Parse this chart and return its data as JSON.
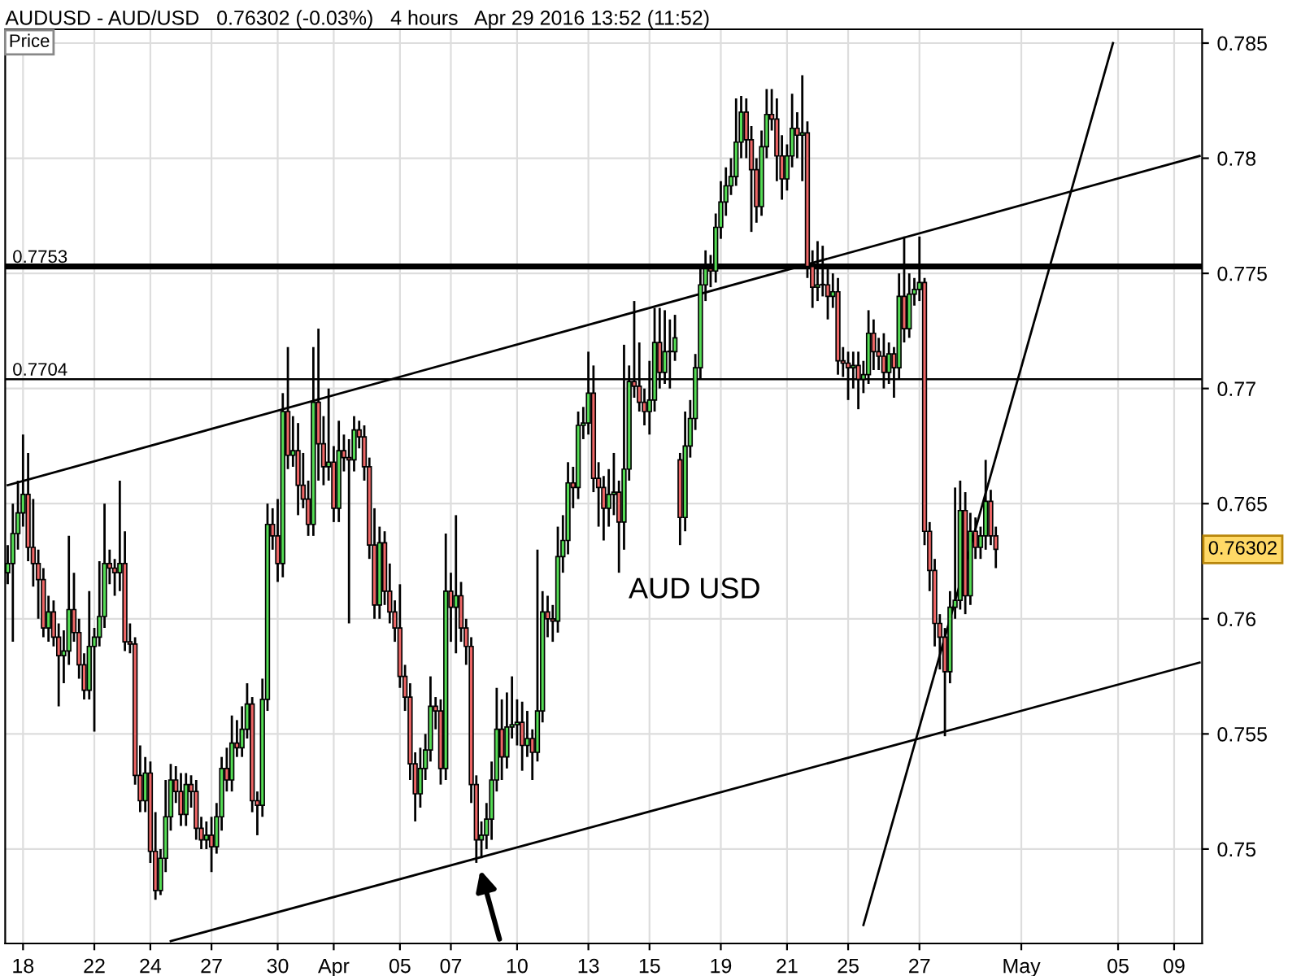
{
  "chart_data": {
    "type": "candlestick",
    "title": "AUDUSD - AUD/USD   0.76302 (-0.03%)   4 hours   Apr 29 2016 13:52 (11:52)",
    "ylabel": "Price",
    "categories": [
      null,
      null,
      null,
      "18",
      null,
      null,
      null,
      null,
      null,
      null,
      null,
      null,
      null,
      null,
      null,
      null,
      null,
      "22",
      null,
      null,
      null,
      null,
      null,
      null,
      null,
      null,
      null,
      null,
      "24",
      null,
      null,
      null,
      null,
      null,
      null,
      null,
      null,
      null,
      null,
      null,
      "27",
      null,
      null,
      null,
      null,
      null,
      null,
      null,
      null,
      null,
      null,
      null,
      null,
      "30",
      null,
      null,
      null,
      null,
      null,
      null,
      null,
      null,
      null,
      null,
      "Apr",
      null,
      null,
      null,
      null,
      null,
      null,
      null,
      null,
      null,
      null,
      null,
      null,
      "05",
      null,
      null,
      null,
      null,
      null,
      null,
      null,
      null,
      null,
      "07",
      null,
      null,
      null,
      null,
      null,
      null,
      null,
      null,
      null,
      null,
      null,
      null,
      "10",
      null,
      null,
      null,
      null,
      null,
      null,
      null,
      null,
      null,
      null,
      null,
      null,
      null,
      "13",
      null,
      null,
      null,
      null,
      null,
      null,
      null,
      null,
      null,
      null,
      null,
      "15",
      null,
      null,
      null,
      null,
      null,
      null,
      null,
      null,
      null,
      null,
      null,
      null,
      null,
      "19",
      null,
      null,
      null,
      null,
      null,
      null,
      null,
      null,
      null,
      null,
      null,
      null,
      "21",
      null,
      null,
      null,
      null,
      null,
      null,
      null,
      null,
      null,
      null,
      null,
      "25",
      null,
      null,
      null,
      null,
      null,
      null,
      null,
      null,
      null,
      null,
      null,
      null,
      null,
      "27",
      null,
      null,
      null,
      null,
      null,
      null,
      null,
      null,
      null,
      null,
      null,
      null,
      null,
      null,
      null,
      null,
      null,
      null,
      null,
      "May",
      null,
      null,
      null,
      null,
      null,
      null,
      null,
      null,
      null,
      null,
      null,
      null,
      null,
      null,
      null,
      null,
      null,
      null,
      "05",
      null,
      null,
      null,
      null,
      null,
      null,
      null,
      null,
      null,
      null,
      "09",
      null,
      null,
      null,
      null,
      null
    ],
    "ohlc": [
      [
        0.762,
        0.7632,
        0.7615,
        0.7624
      ],
      [
        0.7624,
        0.765,
        0.759,
        0.7637
      ],
      [
        0.7637,
        0.766,
        0.763,
        0.7646
      ],
      [
        0.7646,
        0.768,
        0.764,
        0.7654
      ],
      [
        0.7654,
        0.7672,
        0.7625,
        0.7631
      ],
      [
        0.7631,
        0.7652,
        0.7614,
        0.7624
      ],
      [
        0.7624,
        0.763,
        0.76,
        0.7617
      ],
      [
        0.7617,
        0.7622,
        0.7592,
        0.7596
      ],
      [
        0.7596,
        0.761,
        0.759,
        0.7603
      ],
      [
        0.7603,
        0.7608,
        0.7588,
        0.7592
      ],
      [
        0.7592,
        0.7598,
        0.7562,
        0.7584
      ],
      [
        0.7584,
        0.7595,
        0.7572,
        0.7586
      ],
      [
        0.7586,
        0.7636,
        0.758,
        0.7604
      ],
      [
        0.7604,
        0.762,
        0.759,
        0.7594
      ],
      [
        0.7594,
        0.76,
        0.7574,
        0.758
      ],
      [
        0.758,
        0.7585,
        0.7565,
        0.7569
      ],
      [
        0.7569,
        0.7612,
        0.7565,
        0.7588
      ],
      [
        0.7588,
        0.7596,
        0.7551,
        0.7592
      ],
      [
        0.7592,
        0.7625,
        0.7588,
        0.7601
      ],
      [
        0.7601,
        0.765,
        0.7596,
        0.7624
      ],
      [
        0.7624,
        0.763,
        0.7615,
        0.7622
      ],
      [
        0.7622,
        0.7626,
        0.761,
        0.762
      ],
      [
        0.762,
        0.766,
        0.7612,
        0.7624
      ],
      [
        0.7624,
        0.7638,
        0.7586,
        0.759
      ],
      [
        0.759,
        0.7598,
        0.7585,
        0.7589
      ],
      [
        0.7589,
        0.7592,
        0.7528,
        0.7532
      ],
      [
        0.7532,
        0.7545,
        0.7516,
        0.7521
      ],
      [
        0.7521,
        0.754,
        0.7516,
        0.7533
      ],
      [
        0.7533,
        0.7538,
        0.7494,
        0.7499
      ],
      [
        0.7499,
        0.7516,
        0.7478,
        0.7482
      ],
      [
        0.7482,
        0.75,
        0.748,
        0.7496
      ],
      [
        0.7496,
        0.753,
        0.749,
        0.7514
      ],
      [
        0.7514,
        0.7537,
        0.7508,
        0.753
      ],
      [
        0.753,
        0.7536,
        0.752,
        0.7525
      ],
      [
        0.7525,
        0.7533,
        0.751,
        0.7515
      ],
      [
        0.7515,
        0.7533,
        0.751,
        0.7528
      ],
      [
        0.7528,
        0.7532,
        0.7518,
        0.7525
      ],
      [
        0.7525,
        0.753,
        0.7504,
        0.7509
      ],
      [
        0.7509,
        0.7514,
        0.75,
        0.7504
      ],
      [
        0.7504,
        0.7512,
        0.75,
        0.7506
      ],
      [
        0.7506,
        0.7514,
        0.749,
        0.7501
      ],
      [
        0.7501,
        0.752,
        0.7498,
        0.7514
      ],
      [
        0.7514,
        0.754,
        0.7508,
        0.7535
      ],
      [
        0.7535,
        0.7544,
        0.7525,
        0.753
      ],
      [
        0.753,
        0.7558,
        0.7525,
        0.7546
      ],
      [
        0.7546,
        0.7556,
        0.754,
        0.7544
      ],
      [
        0.7544,
        0.7562,
        0.754,
        0.7552
      ],
      [
        0.7552,
        0.7572,
        0.7548,
        0.7563
      ],
      [
        0.7563,
        0.7566,
        0.7516,
        0.7521
      ],
      [
        0.7521,
        0.7525,
        0.7506,
        0.7519
      ],
      [
        0.7519,
        0.7574,
        0.7514,
        0.7565
      ],
      [
        0.7565,
        0.765,
        0.756,
        0.7641
      ],
      [
        0.7641,
        0.7648,
        0.763,
        0.7636
      ],
      [
        0.7636,
        0.7652,
        0.7616,
        0.7624
      ],
      [
        0.7624,
        0.7698,
        0.7618,
        0.769
      ],
      [
        0.769,
        0.7718,
        0.7665,
        0.7671
      ],
      [
        0.7671,
        0.7688,
        0.7666,
        0.7673
      ],
      [
        0.7673,
        0.7685,
        0.7645,
        0.7658
      ],
      [
        0.7658,
        0.7672,
        0.7648,
        0.7652
      ],
      [
        0.7652,
        0.766,
        0.7636,
        0.7641
      ],
      [
        0.7641,
        0.7718,
        0.7636,
        0.7694
      ],
      [
        0.7694,
        0.7726,
        0.766,
        0.7676
      ],
      [
        0.7676,
        0.7688,
        0.7658,
        0.7666
      ],
      [
        0.7666,
        0.77,
        0.766,
        0.7668
      ],
      [
        0.7668,
        0.7675,
        0.7642,
        0.7648
      ],
      [
        0.7648,
        0.7686,
        0.7642,
        0.7673
      ],
      [
        0.7673,
        0.768,
        0.7664,
        0.767
      ],
      [
        0.767,
        0.7678,
        0.7598,
        0.7669
      ],
      [
        0.7669,
        0.7688,
        0.7664,
        0.7682
      ],
      [
        0.7682,
        0.7686,
        0.7674,
        0.7679
      ],
      [
        0.7679,
        0.7684,
        0.766,
        0.7666
      ],
      [
        0.7666,
        0.767,
        0.7626,
        0.7632
      ],
      [
        0.7632,
        0.7648,
        0.76,
        0.7606
      ],
      [
        0.7606,
        0.764,
        0.76,
        0.7633
      ],
      [
        0.7633,
        0.7638,
        0.7606,
        0.7612
      ],
      [
        0.7612,
        0.7624,
        0.7598,
        0.7603
      ],
      [
        0.7603,
        0.7608,
        0.759,
        0.7596
      ],
      [
        0.7596,
        0.7615,
        0.757,
        0.7575
      ],
      [
        0.7575,
        0.758,
        0.756,
        0.7566
      ],
      [
        0.7566,
        0.7572,
        0.753,
        0.7537
      ],
      [
        0.7537,
        0.7542,
        0.7512,
        0.7524
      ],
      [
        0.7524,
        0.7544,
        0.7518,
        0.7535
      ],
      [
        0.7535,
        0.755,
        0.753,
        0.7543
      ],
      [
        0.7543,
        0.7575,
        0.7538,
        0.7562
      ],
      [
        0.7562,
        0.7566,
        0.7552,
        0.756
      ],
      [
        0.756,
        0.7565,
        0.7528,
        0.7535
      ],
      [
        0.7535,
        0.7637,
        0.753,
        0.7612
      ],
      [
        0.7612,
        0.762,
        0.759,
        0.7605
      ],
      [
        0.7605,
        0.7645,
        0.7585,
        0.761
      ],
      [
        0.761,
        0.7616,
        0.759,
        0.7596
      ],
      [
        0.7596,
        0.76,
        0.758,
        0.7588
      ],
      [
        0.7588,
        0.7592,
        0.752,
        0.7528
      ],
      [
        0.7528,
        0.7532,
        0.7494,
        0.7504
      ],
      [
        0.7504,
        0.7512,
        0.7496,
        0.7506
      ],
      [
        0.7506,
        0.752,
        0.75,
        0.7513
      ],
      [
        0.7513,
        0.7538,
        0.7504,
        0.753
      ],
      [
        0.753,
        0.757,
        0.7525,
        0.7552
      ],
      [
        0.7552,
        0.7565,
        0.753,
        0.754
      ],
      [
        0.754,
        0.7568,
        0.7535,
        0.7553
      ],
      [
        0.7553,
        0.7575,
        0.7548,
        0.7554
      ],
      [
        0.7554,
        0.7565,
        0.7545,
        0.7555
      ],
      [
        0.7555,
        0.7564,
        0.7534,
        0.7545
      ],
      [
        0.7545,
        0.756,
        0.754,
        0.7548
      ],
      [
        0.7548,
        0.7552,
        0.753,
        0.7542
      ],
      [
        0.7542,
        0.763,
        0.7538,
        0.756
      ],
      [
        0.756,
        0.7612,
        0.7555,
        0.7603
      ],
      [
        0.7603,
        0.761,
        0.7592,
        0.76
      ],
      [
        0.76,
        0.7606,
        0.759,
        0.7599
      ],
      [
        0.7599,
        0.764,
        0.7594,
        0.7627
      ],
      [
        0.7627,
        0.7645,
        0.762,
        0.7634
      ],
      [
        0.7634,
        0.7668,
        0.7628,
        0.7659
      ],
      [
        0.7659,
        0.7666,
        0.7648,
        0.7657
      ],
      [
        0.7657,
        0.769,
        0.7652,
        0.7684
      ],
      [
        0.7684,
        0.7692,
        0.7678,
        0.7685
      ],
      [
        0.7685,
        0.7716,
        0.768,
        0.7698
      ],
      [
        0.7698,
        0.771,
        0.7655,
        0.7661
      ],
      [
        0.7661,
        0.7668,
        0.764,
        0.7657
      ],
      [
        0.7657,
        0.7662,
        0.7634,
        0.7648
      ],
      [
        0.7648,
        0.7665,
        0.764,
        0.7654
      ],
      [
        0.7654,
        0.7672,
        0.7645,
        0.7655
      ],
      [
        0.7655,
        0.766,
        0.762,
        0.7642
      ],
      [
        0.7642,
        0.7719,
        0.763,
        0.7665
      ],
      [
        0.7665,
        0.771,
        0.766,
        0.7703
      ],
      [
        0.7703,
        0.7738,
        0.7696,
        0.7701
      ],
      [
        0.7701,
        0.772,
        0.769,
        0.7694
      ],
      [
        0.7694,
        0.77,
        0.7684,
        0.769
      ],
      [
        0.769,
        0.7712,
        0.768,
        0.7695
      ],
      [
        0.7695,
        0.7735,
        0.769,
        0.772
      ],
      [
        0.772,
        0.7735,
        0.77,
        0.7707
      ],
      [
        0.7707,
        0.7734,
        0.7702,
        0.7716
      ],
      [
        0.7716,
        0.773,
        0.77,
        0.7716
      ],
      [
        0.7716,
        0.7732,
        0.7712,
        0.7722
      ],
      [
        0.7669,
        0.7672,
        0.7632,
        0.7644
      ],
      [
        0.7644,
        0.769,
        0.7638,
        0.7675
      ],
      [
        0.7675,
        0.7695,
        0.767,
        0.7687
      ],
      [
        0.7687,
        0.7715,
        0.7682,
        0.7709
      ],
      [
        0.7709,
        0.7752,
        0.7704,
        0.7745
      ],
      [
        0.7745,
        0.776,
        0.7738,
        0.7752
      ],
      [
        0.7752,
        0.7758,
        0.7744,
        0.7751
      ],
      [
        0.7751,
        0.7776,
        0.7746,
        0.777
      ],
      [
        0.777,
        0.779,
        0.7765,
        0.7781
      ],
      [
        0.7781,
        0.7796,
        0.7775,
        0.7788
      ],
      [
        0.7788,
        0.78,
        0.7784,
        0.7792
      ],
      [
        0.7792,
        0.7826,
        0.7788,
        0.7807
      ],
      [
        0.7807,
        0.7827,
        0.78,
        0.782
      ],
      [
        0.782,
        0.7826,
        0.78,
        0.7808
      ],
      [
        0.7808,
        0.7814,
        0.7768,
        0.7795
      ],
      [
        0.7795,
        0.78,
        0.7772,
        0.7779
      ],
      [
        0.7779,
        0.7812,
        0.7775,
        0.7805
      ],
      [
        0.7805,
        0.783,
        0.78,
        0.7819
      ],
      [
        0.7819,
        0.783,
        0.7812,
        0.7817
      ],
      [
        0.7817,
        0.7826,
        0.779,
        0.7801
      ],
      [
        0.7801,
        0.781,
        0.7782,
        0.7791
      ],
      [
        0.7791,
        0.7806,
        0.7786,
        0.7801
      ],
      [
        0.7801,
        0.7828,
        0.7796,
        0.7813
      ],
      [
        0.7813,
        0.782,
        0.78,
        0.781
      ],
      [
        0.781,
        0.7836,
        0.779,
        0.7811
      ],
      [
        0.7811,
        0.7816,
        0.7748,
        0.7753
      ],
      [
        0.7753,
        0.776,
        0.7735,
        0.7744
      ],
      [
        0.7744,
        0.7764,
        0.7738,
        0.7745
      ],
      [
        0.7745,
        0.7762,
        0.774,
        0.7745
      ],
      [
        0.7745,
        0.7752,
        0.773,
        0.774
      ],
      [
        0.774,
        0.775,
        0.7735,
        0.7742
      ],
      [
        0.7742,
        0.7748,
        0.7706,
        0.7712
      ],
      [
        0.7712,
        0.7718,
        0.7705,
        0.7711
      ],
      [
        0.7711,
        0.7716,
        0.7695,
        0.7709
      ],
      [
        0.7709,
        0.7716,
        0.77,
        0.771
      ],
      [
        0.771,
        0.7716,
        0.7691,
        0.7704
      ],
      [
        0.7704,
        0.7712,
        0.7698,
        0.7706
      ],
      [
        0.7706,
        0.7734,
        0.7702,
        0.7724
      ],
      [
        0.7724,
        0.773,
        0.7708,
        0.7716
      ],
      [
        0.7716,
        0.7722,
        0.7708,
        0.7714
      ],
      [
        0.7714,
        0.7724,
        0.77,
        0.7707
      ],
      [
        0.7707,
        0.772,
        0.7702,
        0.7715
      ],
      [
        0.7715,
        0.7718,
        0.7696,
        0.7709
      ],
      [
        0.7709,
        0.775,
        0.7704,
        0.774
      ],
      [
        0.774,
        0.7766,
        0.772,
        0.7726
      ],
      [
        0.7726,
        0.775,
        0.7722,
        0.7741
      ],
      [
        0.7741,
        0.7748,
        0.7736,
        0.7743
      ],
      [
        0.7743,
        0.7766,
        0.7738,
        0.7746
      ],
      [
        0.7746,
        0.7748,
        0.7632,
        0.7638
      ],
      [
        0.7638,
        0.7642,
        0.7612,
        0.7621
      ],
      [
        0.7621,
        0.7626,
        0.7588,
        0.7598
      ],
      [
        0.7598,
        0.7602,
        0.7578,
        0.7592
      ],
      [
        0.7592,
        0.7596,
        0.7549,
        0.7577
      ],
      [
        0.7577,
        0.7612,
        0.7572,
        0.7605
      ],
      [
        0.7605,
        0.7657,
        0.76,
        0.7608
      ],
      [
        0.7608,
        0.766,
        0.7604,
        0.7647
      ],
      [
        0.7647,
        0.7655,
        0.7602,
        0.761
      ],
      [
        0.761,
        0.7646,
        0.7606,
        0.7638
      ],
      [
        0.7638,
        0.7644,
        0.7626,
        0.7631
      ],
      [
        0.7631,
        0.764,
        0.7626,
        0.7636
      ],
      [
        0.7636,
        0.7669,
        0.763,
        0.7651
      ],
      [
        0.7651,
        0.7656,
        0.7632,
        0.7636
      ],
      [
        0.7636,
        0.764,
        0.7622,
        0.76302
      ],
      null,
      null,
      null,
      null,
      null,
      null,
      null,
      null,
      null,
      null,
      null,
      null,
      null,
      null,
      null,
      null,
      null,
      null,
      null,
      null,
      null,
      null,
      null,
      null,
      null,
      null,
      null,
      null,
      null,
      null,
      null,
      null,
      null,
      null,
      null,
      null,
      null,
      null,
      null,
      null
    ],
    "series": [
      {
        "type": "line",
        "color": "#000000",
        "values": [
          0.7658,
          null,
          null,
          null,
          null,
          null,
          null,
          null,
          null,
          null,
          null,
          null,
          null,
          null,
          null,
          null,
          null,
          null,
          null,
          null,
          null,
          null,
          null,
          null,
          null,
          null,
          null,
          null,
          null,
          null,
          null,
          null,
          null,
          null,
          null,
          null,
          null,
          null,
          null,
          null,
          null,
          null,
          null,
          null,
          null,
          null,
          null,
          null,
          null,
          null,
          null,
          null,
          null,
          null,
          null,
          null,
          null,
          null,
          null,
          null,
          null,
          null,
          null,
          null,
          null,
          null,
          null,
          null,
          null,
          null,
          null,
          null,
          null,
          null,
          null,
          null,
          null,
          null,
          null,
          null,
          null,
          null,
          null,
          null,
          null,
          null,
          null,
          null,
          null,
          null,
          null,
          null,
          null,
          null,
          null,
          null,
          null,
          null,
          null,
          null,
          null,
          null,
          null,
          null,
          null,
          null,
          null,
          null,
          null,
          null,
          null,
          null,
          null,
          null,
          null,
          null,
          null,
          null,
          null,
          null,
          null,
          null,
          null,
          null,
          null,
          null,
          null,
          null,
          null,
          null,
          null,
          null,
          null,
          null,
          null,
          null,
          null,
          null,
          null,
          null,
          null,
          null,
          null,
          null,
          null,
          null,
          null,
          null,
          null,
          null,
          null,
          null,
          null,
          null,
          null,
          null,
          null,
          null,
          null,
          null,
          null,
          null,
          null,
          null,
          null,
          null,
          null,
          null,
          null,
          null,
          null,
          null,
          null,
          null,
          null,
          null,
          null,
          null,
          null,
          null,
          null,
          null,
          null,
          null,
          null,
          null,
          null,
          null,
          null,
          null,
          null,
          null,
          null,
          null,
          null,
          null,
          null,
          null,
          null,
          null,
          null,
          null,
          null,
          null,
          null,
          null,
          null,
          null,
          null,
          null,
          null,
          null,
          null,
          null,
          null,
          null,
          null,
          null,
          null,
          null,
          null,
          null,
          null,
          null,
          null,
          null,
          null,
          null,
          null,
          null,
          null,
          null,
          null,
          null,
          0.7801
        ]
      },
      {
        "type": "line",
        "color": "#000000",
        "values": [
          null,
          null,
          null,
          null,
          null,
          null,
          null,
          null,
          null,
          null,
          null,
          null,
          null,
          null,
          null,
          null,
          null,
          null,
          null,
          null,
          null,
          null,
          null,
          null,
          null,
          null,
          null,
          null,
          null,
          null,
          null,
          null,
          0.746,
          null,
          null,
          null,
          null,
          null,
          null,
          null,
          null,
          null,
          null,
          null,
          null,
          null,
          null,
          null,
          null,
          null,
          null,
          null,
          null,
          null,
          null,
          null,
          null,
          null,
          null,
          null,
          null,
          null,
          null,
          null,
          null,
          null,
          null,
          null,
          null,
          null,
          null,
          null,
          null,
          null,
          null,
          null,
          null,
          null,
          null,
          null,
          null,
          null,
          null,
          null,
          null,
          null,
          null,
          null,
          null,
          null,
          null,
          null,
          null,
          null,
          null,
          null,
          null,
          null,
          null,
          null,
          null,
          null,
          null,
          null,
          null,
          null,
          null,
          null,
          null,
          null,
          null,
          null,
          null,
          null,
          null,
          null,
          null,
          null,
          null,
          null,
          null,
          null,
          null,
          null,
          null,
          null,
          null,
          null,
          null,
          null,
          null,
          null,
          null,
          null,
          null,
          null,
          null,
          null,
          null,
          null,
          null,
          null,
          null,
          null,
          null,
          null,
          null,
          null,
          null,
          null,
          null,
          null,
          null,
          null,
          null,
          null,
          null,
          null,
          null,
          null,
          null,
          null,
          null,
          null,
          null,
          null,
          null,
          null,
          null,
          null,
          null,
          null,
          null,
          null,
          null,
          null,
          null,
          null,
          null,
          null,
          null,
          null,
          null,
          null,
          null,
          null,
          null,
          null,
          null,
          null,
          null,
          null,
          null,
          null,
          null,
          null,
          null,
          null,
          null,
          null,
          null,
          null,
          null,
          null,
          null,
          null,
          null,
          null,
          null,
          null,
          null,
          null,
          null,
          null,
          null,
          null,
          null,
          null,
          null,
          null,
          null,
          null,
          null,
          null,
          null,
          null,
          null,
          null,
          null,
          null,
          null,
          null,
          null,
          null,
          0.7581
        ]
      },
      {
        "type": "line",
        "color": "#000000",
        "values": [
          null,
          null,
          null,
          null,
          null,
          null,
          null,
          null,
          null,
          null,
          null,
          null,
          null,
          null,
          null,
          null,
          null,
          null,
          null,
          null,
          null,
          null,
          null,
          null,
          null,
          null,
          null,
          null,
          null,
          null,
          null,
          null,
          null,
          null,
          null,
          null,
          null,
          null,
          null,
          null,
          null,
          null,
          null,
          null,
          null,
          null,
          null,
          null,
          null,
          null,
          null,
          null,
          null,
          null,
          null,
          null,
          null,
          null,
          null,
          null,
          null,
          null,
          null,
          null,
          null,
          null,
          null,
          null,
          null,
          null,
          null,
          null,
          null,
          null,
          null,
          null,
          null,
          null,
          null,
          null,
          null,
          null,
          null,
          null,
          null,
          null,
          null,
          null,
          null,
          null,
          null,
          null,
          null,
          null,
          null,
          null,
          null,
          null,
          null,
          null,
          null,
          null,
          null,
          null,
          null,
          null,
          null,
          null,
          null,
          null,
          null,
          null,
          null,
          null,
          null,
          null,
          null,
          null,
          null,
          null,
          null,
          null,
          null,
          null,
          null,
          null,
          null,
          null,
          null,
          null,
          null,
          null,
          null,
          null,
          null,
          null,
          null,
          null,
          null,
          null,
          null,
          null,
          null,
          null,
          null,
          null,
          null,
          null,
          null,
          null,
          null,
          null,
          null,
          null,
          null,
          null,
          null,
          null,
          null,
          null,
          null,
          null,
          null,
          null,
          null,
          null,
          null,
          null,
          0.7467,
          null,
          null,
          null,
          null,
          null,
          null,
          null,
          null,
          null,
          null,
          null,
          null,
          null,
          null,
          null,
          null,
          null,
          null,
          null,
          null,
          null,
          null,
          null,
          null,
          null,
          null,
          null,
          null,
          null,
          null,
          null,
          null,
          null,
          null,
          null,
          null,
          null,
          null,
          null,
          null,
          null,
          null,
          null,
          null,
          null,
          null,
          null,
          null,
          0.785,
          null,
          null,
          null,
          null,
          null,
          null,
          null,
          null,
          null,
          null,
          null,
          null,
          null,
          null,
          null,
          null,
          null
        ]
      }
    ],
    "ref_lines": [
      {
        "axis": "y",
        "value": 0.7753,
        "label": "0.7753",
        "color": "#000000"
      },
      {
        "axis": "y",
        "value": 0.7704,
        "label": "0.7704",
        "color": "#000000"
      }
    ],
    "annotations": [
      "AUD USD",
      "0.76302"
    ],
    "ylim": [
      0.7459,
      0.7856
    ],
    "yticks": [
      0.75,
      0.755,
      0.76,
      0.765,
      0.77,
      0.775,
      0.78,
      0.785
    ],
    "grid": true
  }
}
